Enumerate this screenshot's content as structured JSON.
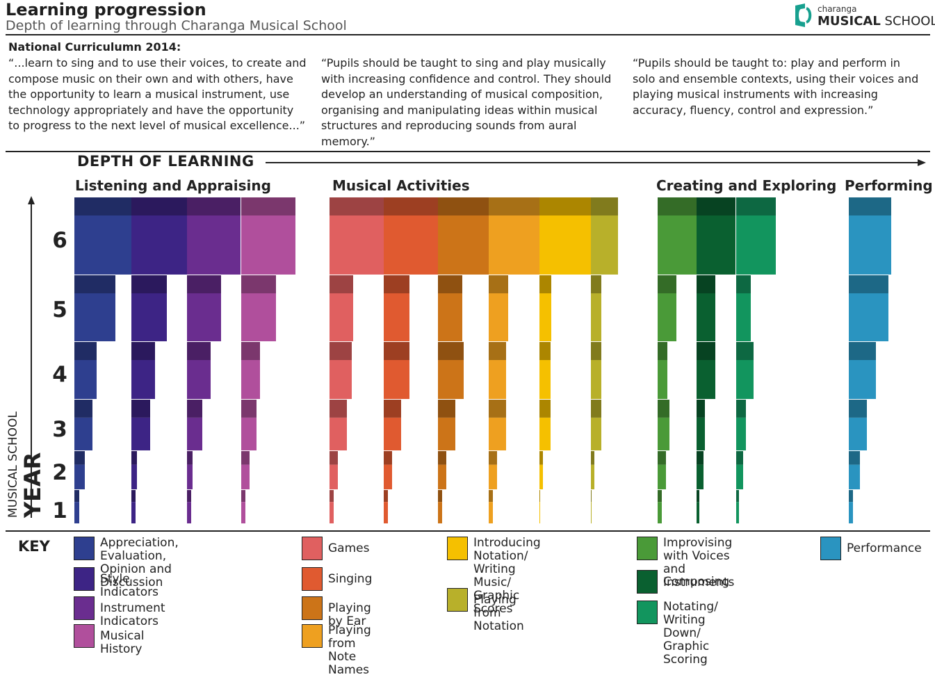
{
  "header": {
    "title": "Learning progression",
    "subtitle": "Depth of learning through Charanga Musical School",
    "logo_small": "charanga",
    "logo_bold": "MUSICAL",
    "logo_rest": "SCHOOL"
  },
  "curriculum": {
    "heading": "National Curriculumn 2014:",
    "quotes": [
      "“...learn to sing and to use their voices, to create and compose music on their own and with others, have the opportunity to learn a musical instrument, use technology appropriately and have the opportunity to progress to the next level of musical excellence...”",
      "“Pupils should be taught to sing and play musically with increasing confidence and control. They should develop an understanding of musical composition, organising and manipulating ideas within musical structures and reproducing sounds from aural memory.”",
      "“Pupils should be taught to: play and perform in solo and ensemble contexts, using their voices and playing musical instruments with increasing accuracy, fluency, control and expression.”"
    ]
  },
  "chart_data": {
    "type": "bar",
    "x_axis_label": "DEPTH OF LEARNING",
    "y_axis_label_small": "MUSICAL SCHOOL",
    "y_axis_label_big": "YEAR",
    "years": [
      1,
      2,
      3,
      4,
      5,
      6
    ],
    "groups": [
      {
        "name": "Listening and Appraising",
        "strands": [
          "Appreciation, Evaluation, Opinion and Discussion",
          "Style Indicators",
          "Instrument Indicators",
          "Musical History"
        ]
      },
      {
        "name": "Musical Activities",
        "strands": [
          "Games",
          "Singing",
          "Playing by Ear",
          "Playing from Note Names",
          "Introducing Notation/ Writing Music/ Graphic Scores",
          "Playing from Notation"
        ]
      },
      {
        "name": "Creating and Exploring",
        "strands": [
          "Improvising with Voices and Instruments",
          "Composing",
          "Notating/ Writing Down/ Graphic Scoring"
        ]
      },
      {
        "name": "Performing",
        "strands": [
          "Performance"
        ]
      }
    ],
    "series": [
      {
        "name": "Appreciation, Evaluation, Opinion and Discussion",
        "color": "#2e3f8f",
        "values": [
          7,
          15,
          26,
          32,
          59,
          82
        ]
      },
      {
        "name": "Style Indicators",
        "color": "#3d2485",
        "values": [
          6,
          8,
          27,
          34,
          51,
          80
        ]
      },
      {
        "name": "Instrument Indicators",
        "color": "#6a2d8f",
        "values": [
          6,
          8,
          22,
          34,
          49,
          77
        ]
      },
      {
        "name": "Musical History",
        "color": "#b04f9c",
        "values": [
          6,
          12,
          22,
          27,
          50,
          78
        ]
      },
      {
        "name": "Games",
        "color": "#e06060",
        "values": [
          6,
          12,
          25,
          32,
          34,
          79
        ]
      },
      {
        "name": "Singing",
        "color": "#e05a30",
        "values": [
          6,
          12,
          25,
          37,
          37,
          78
        ]
      },
      {
        "name": "Playing by Ear",
        "color": "#cc7418",
        "values": [
          6,
          12,
          25,
          37,
          35,
          73
        ]
      },
      {
        "name": "Playing from Note Names",
        "color": "#eea020",
        "values": [
          6,
          12,
          25,
          25,
          28,
          73
        ]
      },
      {
        "name": "Introducing Notation/ Writing Music/ Graphic Scores",
        "color": "#f5c000",
        "values": [
          1,
          5,
          16,
          16,
          17,
          74
        ]
      },
      {
        "name": "Playing from Notation",
        "color": "#b8b02a",
        "values": [
          1,
          5,
          15,
          15,
          15,
          39
        ]
      },
      {
        "name": "Improvising with Voices and Instruments",
        "color": "#4a9a38",
        "values": [
          6,
          12,
          17,
          14,
          27,
          57
        ]
      },
      {
        "name": "Composing",
        "color": "#0a6030",
        "values": [
          4,
          10,
          12,
          27,
          27,
          56
        ]
      },
      {
        "name": "Notating/ Writing Down/ Graphic Scoring",
        "color": "#12955e",
        "values": [
          4,
          10,
          14,
          25,
          21,
          57
        ]
      },
      {
        "name": "Performance",
        "color": "#2a94c0",
        "values": [
          6,
          16,
          26,
          39,
          57,
          61
        ]
      }
    ]
  },
  "key": {
    "label": "KEY",
    "items": [
      {
        "label": "Appreciation, Evaluation,\nOpinion and Discussion",
        "color": "#2e3f8f"
      },
      {
        "label": "Style Indicators",
        "color": "#3d2485"
      },
      {
        "label": "Instrument Indicators",
        "color": "#6a2d8f"
      },
      {
        "label": "Musical History",
        "color": "#b04f9c"
      },
      {
        "label": "Games",
        "color": "#e06060"
      },
      {
        "label": "Singing",
        "color": "#e05a30"
      },
      {
        "label": "Playing by Ear",
        "color": "#cc7418"
      },
      {
        "label": "Playing from\nNote Names",
        "color": "#eea020"
      },
      {
        "label": "Introducing Notation/\nWriting Music/\nGraphic Scores",
        "color": "#f5c000"
      },
      {
        "label": "Playing from Notation",
        "color": "#b8b02a"
      },
      {
        "label": "Improvising with Voices\nand Instruments",
        "color": "#4a9a38"
      },
      {
        "label": "Composing",
        "color": "#0a6030"
      },
      {
        "label": "Notating/\nWriting Down/\nGraphic Scoring",
        "color": "#12955e"
      },
      {
        "label": "Performance",
        "color": "#2a94c0"
      }
    ]
  }
}
